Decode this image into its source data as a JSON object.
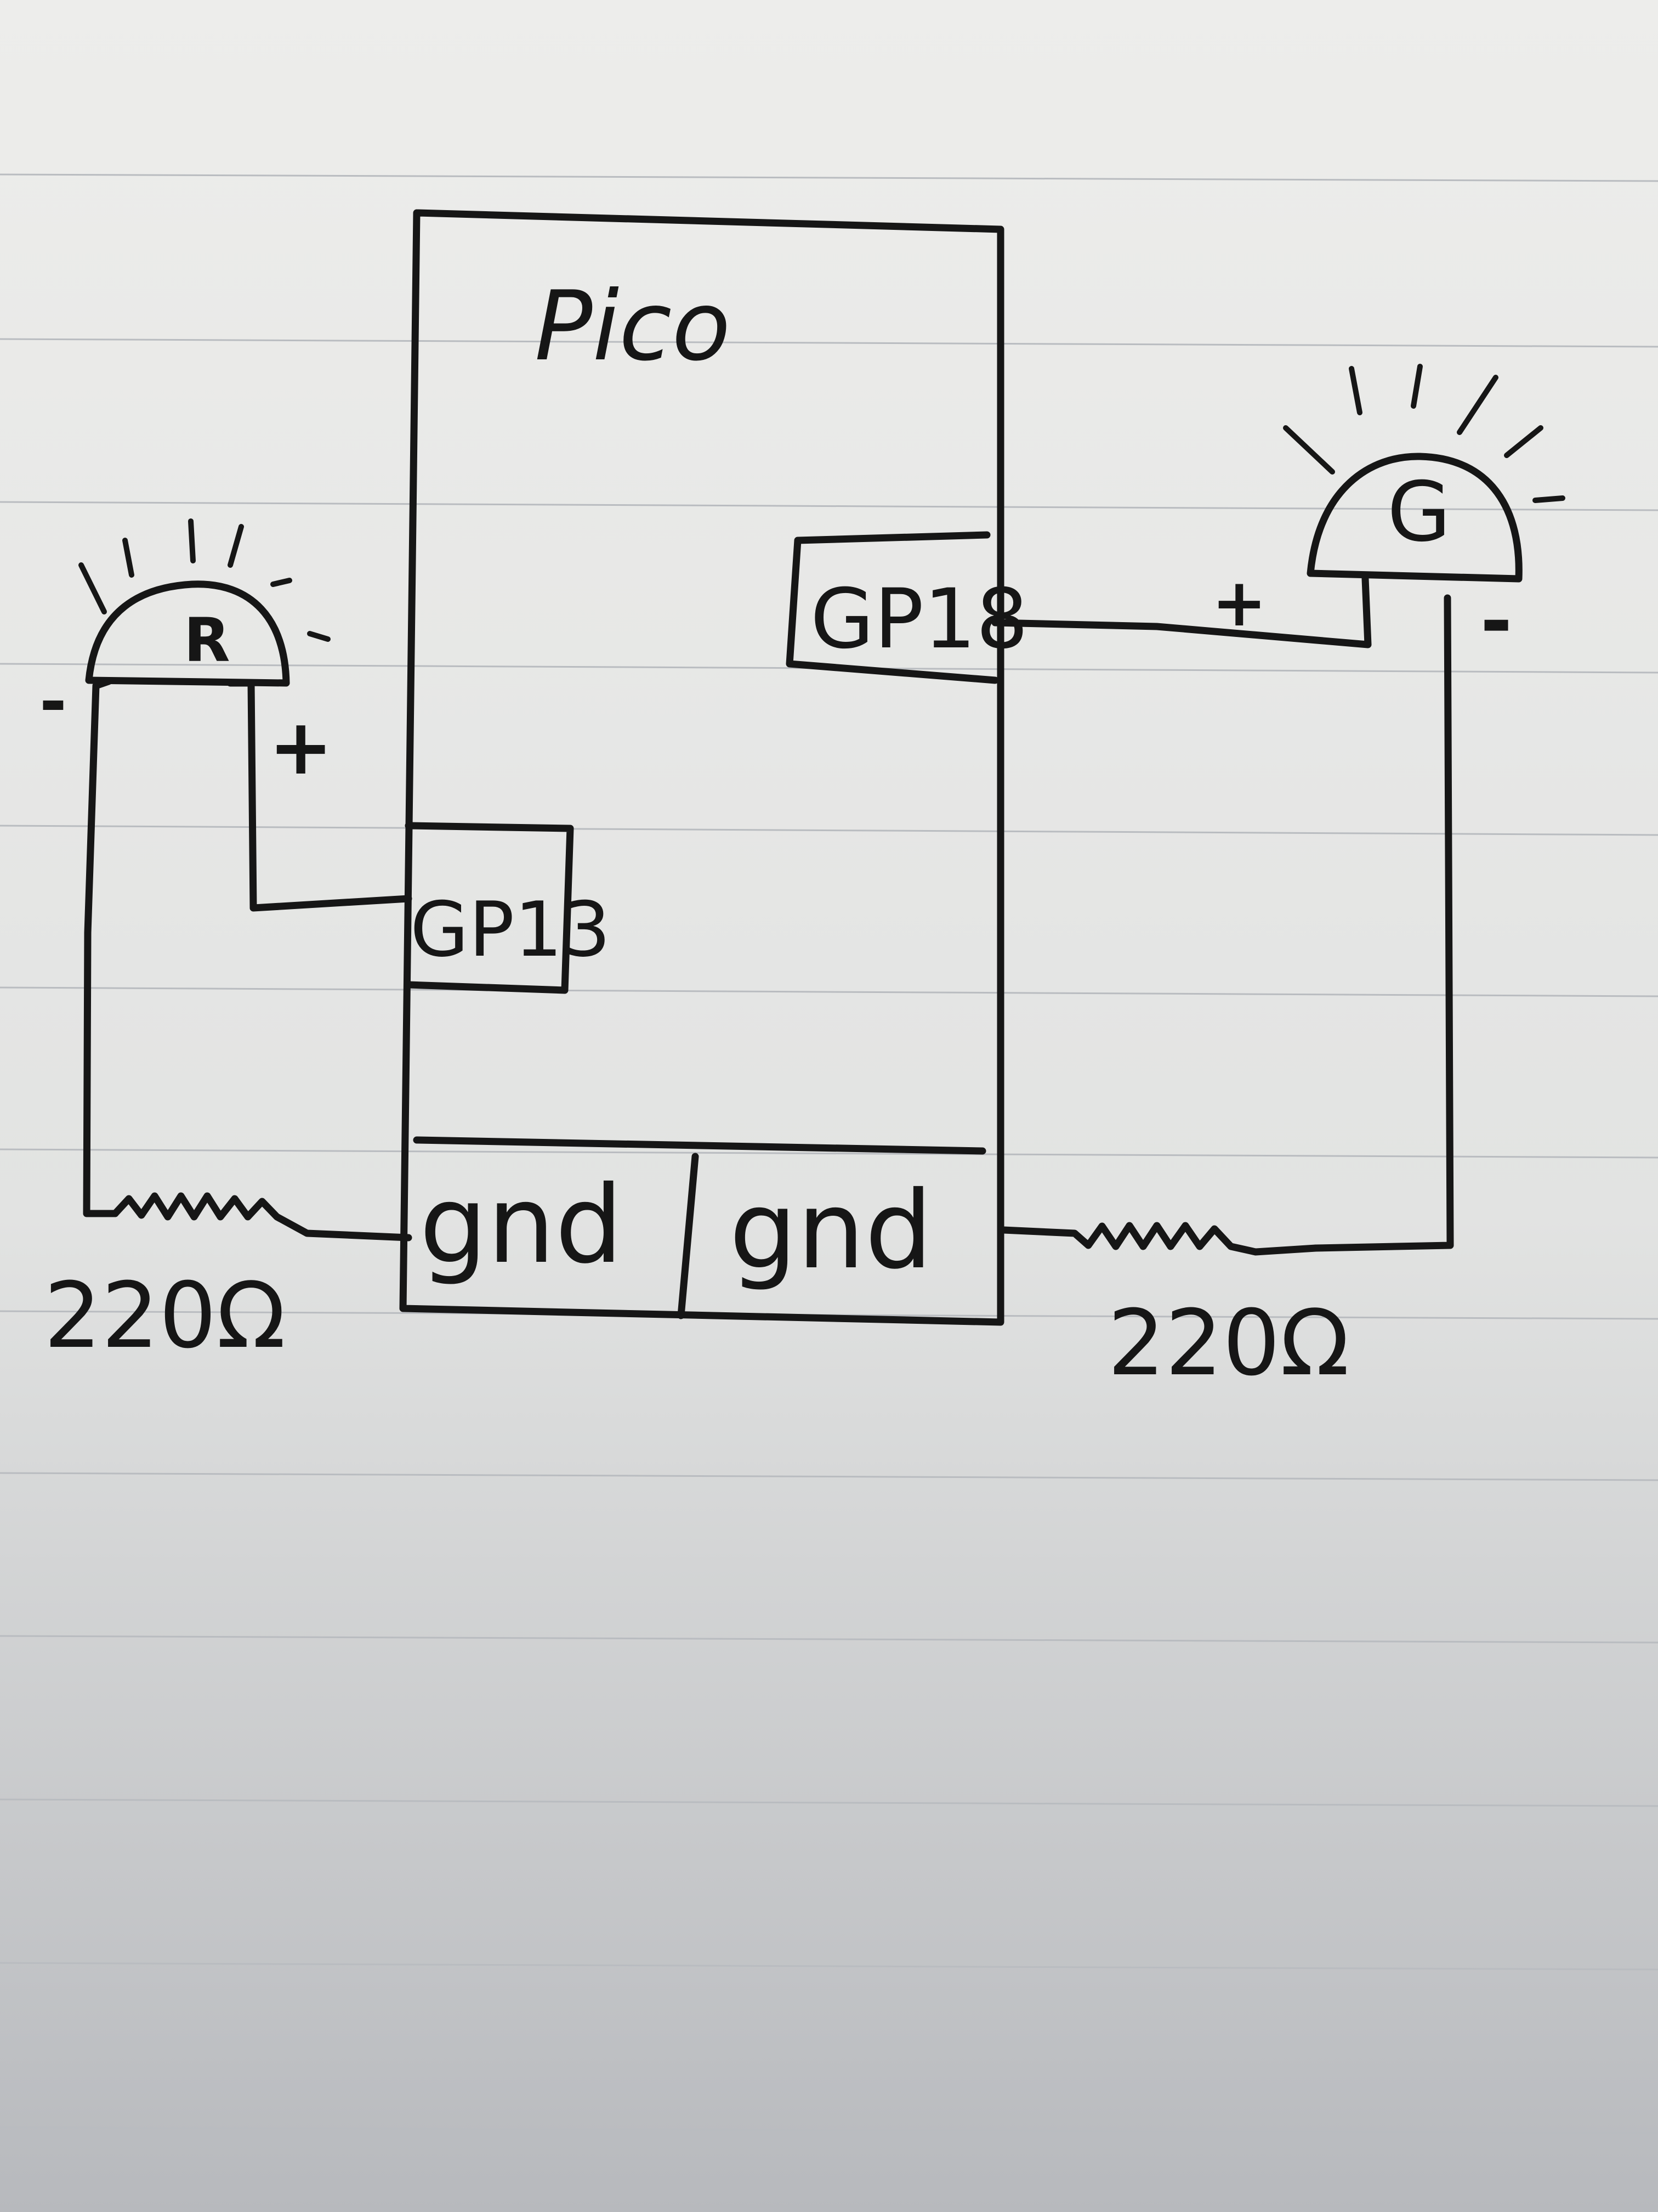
{
  "diagram": {
    "board_label": "Pico",
    "pins": {
      "gp13": "GP13",
      "gp18": "GP18",
      "gnd_left": "gnd",
      "gnd_right": "gnd"
    },
    "led_red": {
      "label": "R",
      "plus": "+",
      "minus": "-"
    },
    "led_green": {
      "label": "G",
      "plus": "+",
      "minus": "-"
    },
    "resistor_left": {
      "label": "220Ω"
    },
    "resistor_right": {
      "label": "220Ω"
    }
  }
}
